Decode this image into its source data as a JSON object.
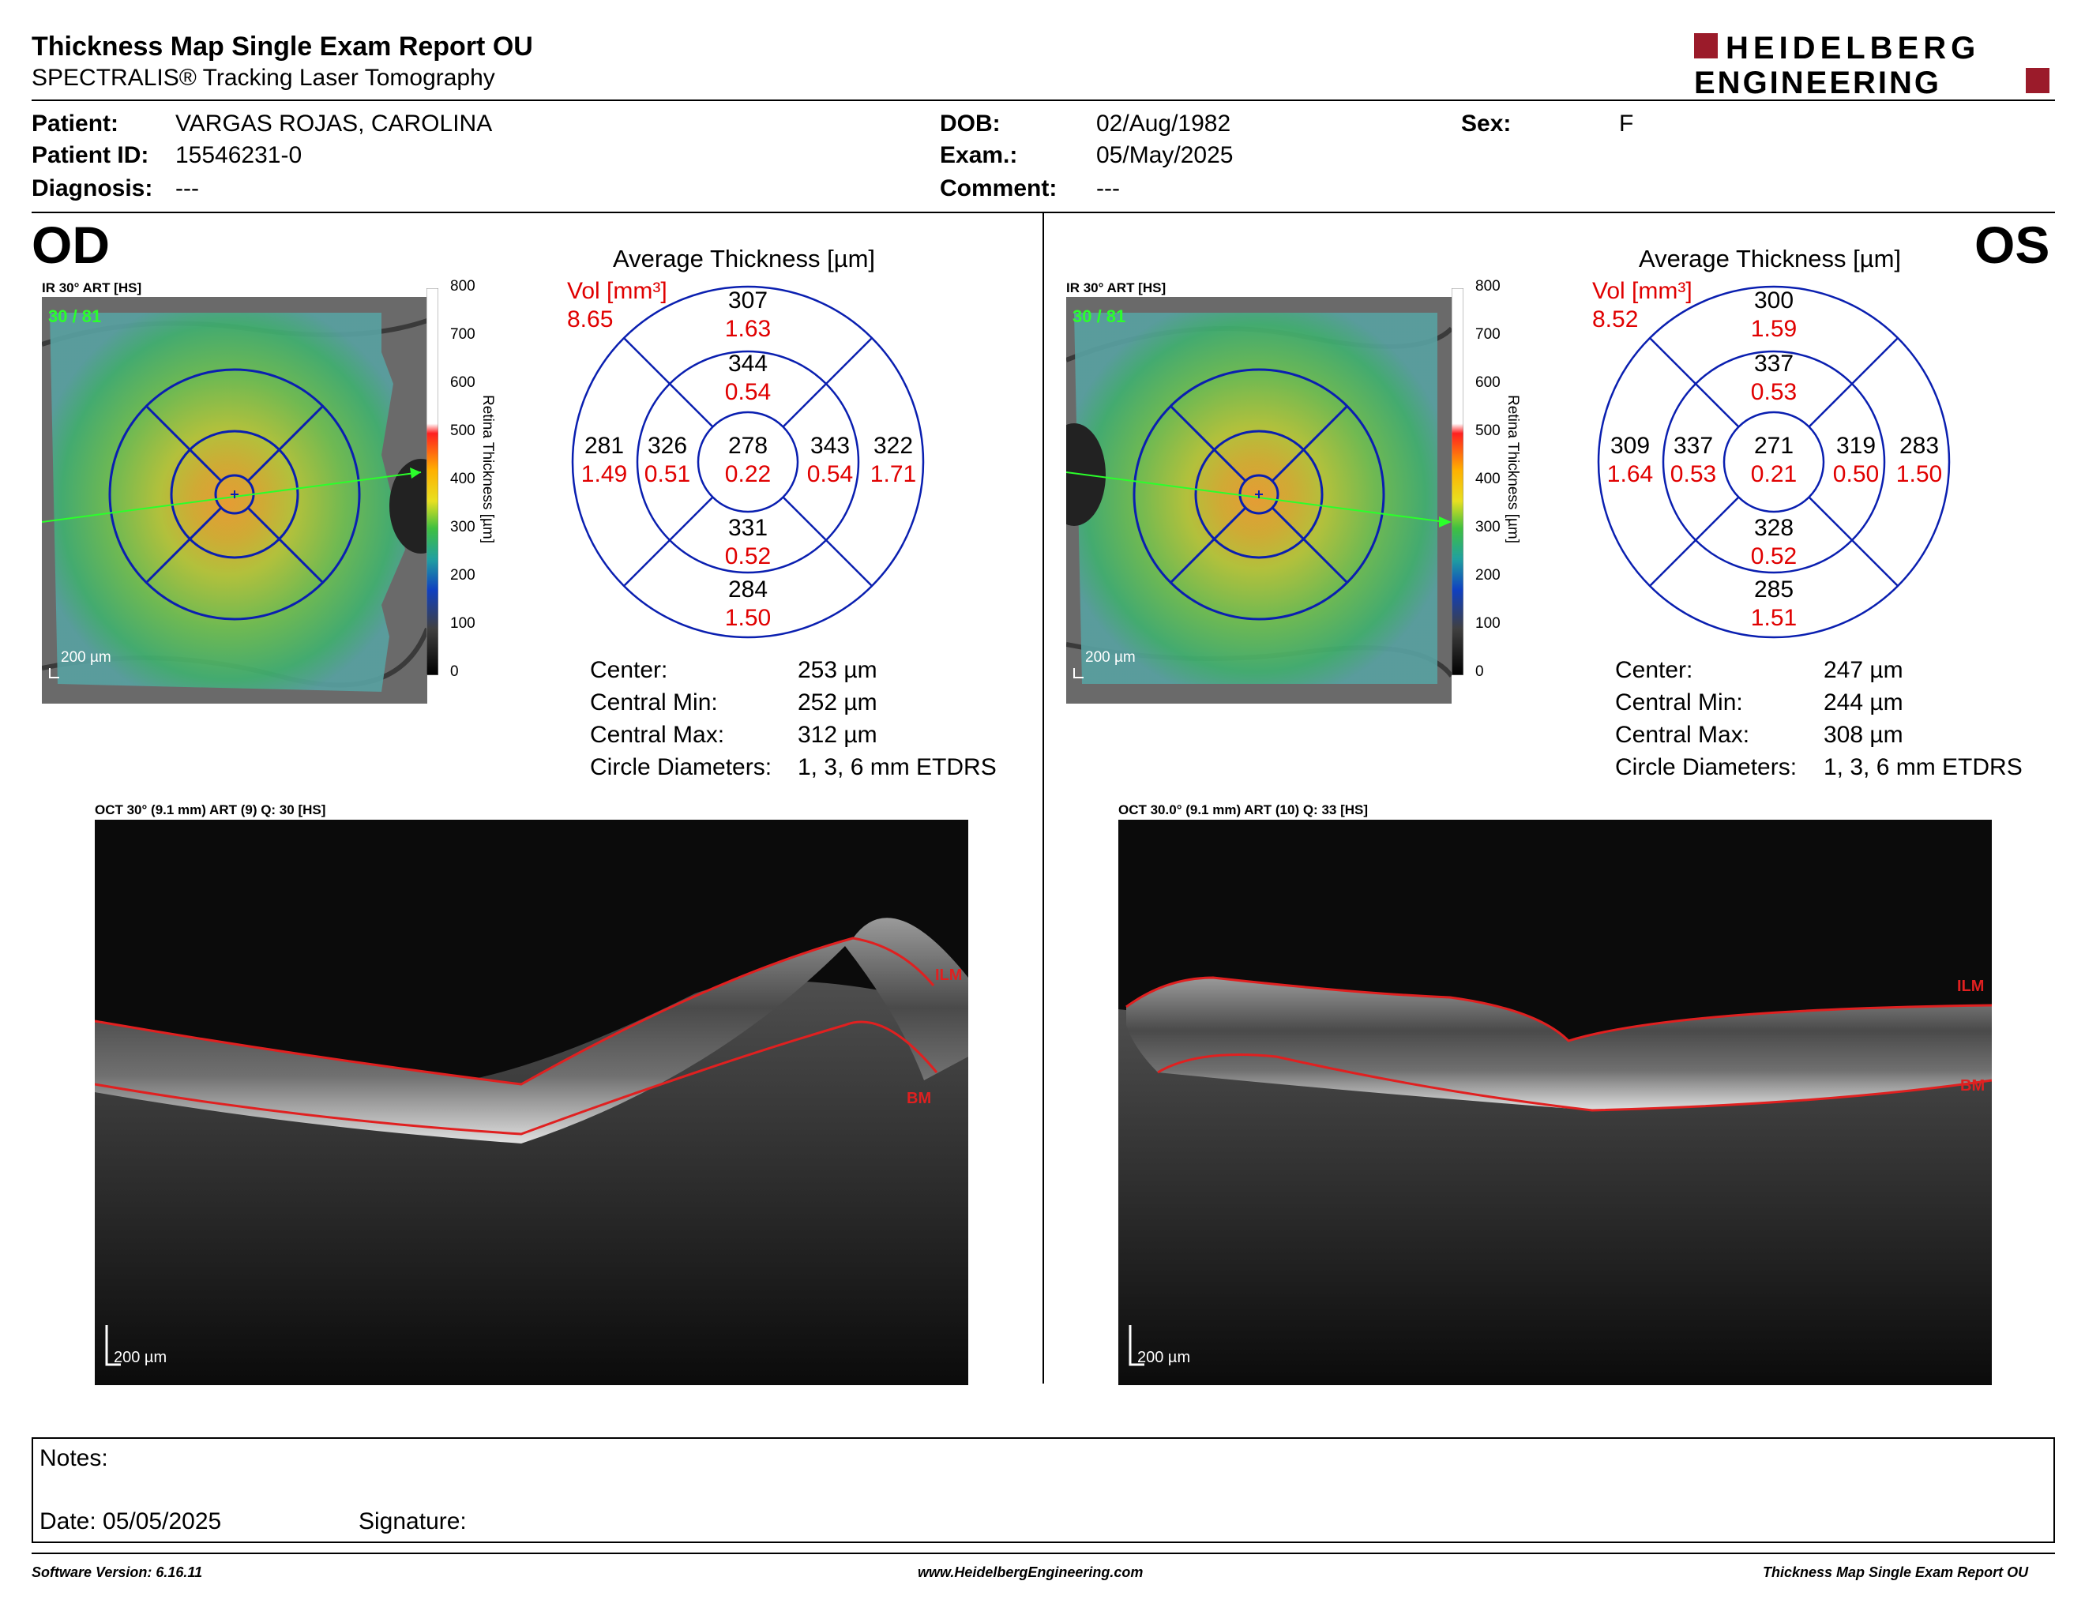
{
  "header": {
    "title": "Thickness Map Single Exam Report OU",
    "subtitle": "SPECTRALIS® Tracking Laser Tomography",
    "logo_line1": "HEIDELBERG",
    "logo_line2": "ENGINEERING",
    "logo_color": "#9b1b2a"
  },
  "patient": {
    "patient_label": "Patient:",
    "patient_value": "VARGAS ROJAS, CAROLINA",
    "id_label": "Patient ID:",
    "id_value": "15546231-0",
    "diagnosis_label": "Diagnosis:",
    "diagnosis_value": "---",
    "dob_label": "DOB:",
    "dob_value": "02/Aug/1982",
    "exam_label": "Exam.:",
    "exam_value": "05/May/2025",
    "comment_label": "Comment:",
    "comment_value": "---",
    "sex_label": "Sex:",
    "sex_value": "F"
  },
  "colorbar": {
    "ticks": [
      "800",
      "700",
      "600",
      "500",
      "400",
      "300",
      "200",
      "100",
      "0"
    ],
    "title": "Retina Thickness [µm]"
  },
  "od": {
    "eye": "OD",
    "ir_label": "IR 30° ART [HS]",
    "ir_quality": "30 / 81",
    "scale": "200 µm",
    "avg_title": "Average Thickness [µm]",
    "vol_label": "Vol [mm³]",
    "vol_total": "8.65",
    "sectors": {
      "outer_sup": {
        "t": "307",
        "v": "1.63"
      },
      "inner_sup": {
        "t": "344",
        "v": "0.54"
      },
      "outer_left": {
        "t": "281",
        "v": "1.49"
      },
      "inner_left": {
        "t": "326",
        "v": "0.51"
      },
      "center": {
        "t": "278",
        "v": "0.22"
      },
      "inner_right": {
        "t": "343",
        "v": "0.54"
      },
      "outer_right": {
        "t": "322",
        "v": "1.71"
      },
      "inner_inf": {
        "t": "331",
        "v": "0.52"
      },
      "outer_inf": {
        "t": "284",
        "v": "1.50"
      }
    },
    "stats": {
      "center_label": "Center:",
      "center_value": "253 µm",
      "min_label": "Central Min:",
      "min_value": "252 µm",
      "max_label": "Central Max:",
      "max_value": "312 µm",
      "diam_label": "Circle Diameters:",
      "diam_value": "1, 3, 6 mm ETDRS"
    },
    "oct_label": "OCT 30° (9.1 mm) ART (9) Q: 30 [HS]",
    "ilm": "ILM",
    "bm": "BM",
    "oct_scale": "200 µm"
  },
  "os": {
    "eye": "OS",
    "ir_label": "IR 30° ART [HS]",
    "ir_quality": "30 / 81",
    "scale": "200 µm",
    "avg_title": "Average Thickness [µm]",
    "vol_label": "Vol [mm³]",
    "vol_total": "8.52",
    "sectors": {
      "outer_sup": {
        "t": "300",
        "v": "1.59"
      },
      "inner_sup": {
        "t": "337",
        "v": "0.53"
      },
      "outer_left": {
        "t": "309",
        "v": "1.64"
      },
      "inner_left": {
        "t": "337",
        "v": "0.53"
      },
      "center": {
        "t": "271",
        "v": "0.21"
      },
      "inner_right": {
        "t": "319",
        "v": "0.50"
      },
      "outer_right": {
        "t": "283",
        "v": "1.50"
      },
      "inner_inf": {
        "t": "328",
        "v": "0.52"
      },
      "outer_inf": {
        "t": "285",
        "v": "1.51"
      }
    },
    "stats": {
      "center_label": "Center:",
      "center_value": "247 µm",
      "min_label": "Central Min:",
      "min_value": "244 µm",
      "max_label": "Central Max:",
      "max_value": "308 µm",
      "diam_label": "Circle Diameters:",
      "diam_value": "1, 3, 6 mm ETDRS"
    },
    "oct_label": "OCT 30.0° (9.1 mm) ART (10) Q: 33 [HS]",
    "ilm": "ILM",
    "bm": "BM",
    "oct_scale": "200 µm"
  },
  "notes": {
    "notes_label": "Notes:",
    "date_label": "Date: 05/05/2025",
    "signature_label": "Signature:"
  },
  "footer": {
    "software": "Software Version: 6.16.11",
    "website": "www.HeidelbergEngineering.com",
    "report": "Thickness Map Single Exam Report OU"
  }
}
